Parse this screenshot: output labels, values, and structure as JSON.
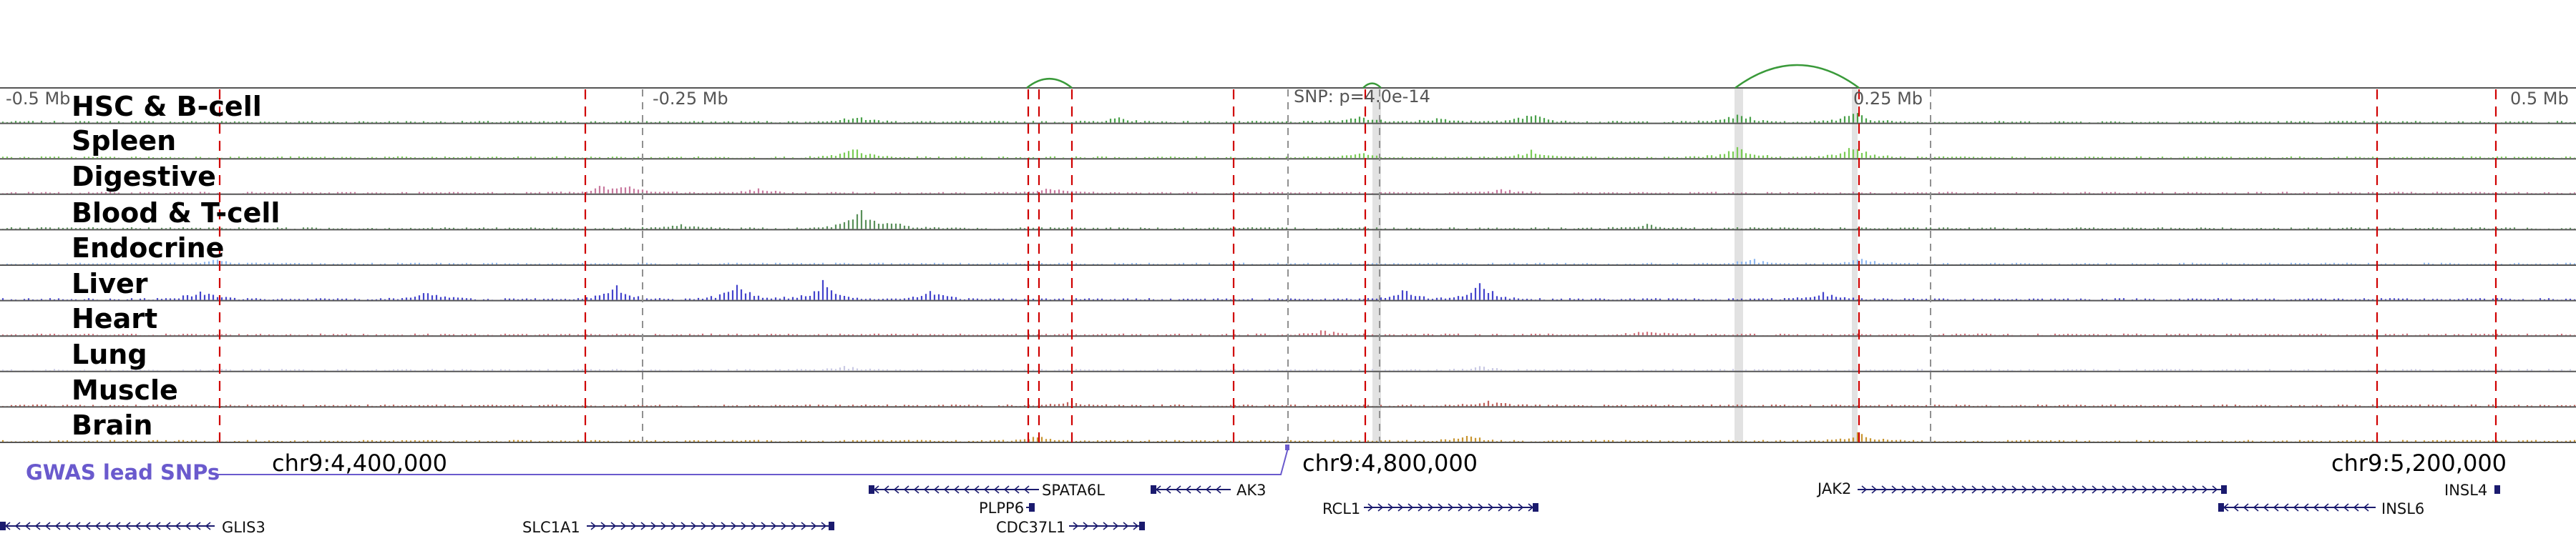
{
  "scale": {
    "left": "-0.5 Mb",
    "mid_left": "-0.25 Mb",
    "snp": "SNP: p=4.0e-14",
    "mid_right": "0.25 Mb",
    "right": "0.5 Mb"
  },
  "tracks": [
    {
      "name": "HSC & B-cell",
      "color": "#4aa04a"
    },
    {
      "name": "Spleen",
      "color": "#7acc55"
    },
    {
      "name": "Digestive",
      "color": "#c8789e"
    },
    {
      "name": "Blood & T-cell",
      "color": "#5a905a"
    },
    {
      "name": "Endocrine",
      "color": "#8fb8f0"
    },
    {
      "name": "Liver",
      "color": "#4444cc"
    },
    {
      "name": "Heart",
      "color": "#d0707a"
    },
    {
      "name": "Lung",
      "color": "#c8c8e4"
    },
    {
      "name": "Muscle",
      "color": "#c0605a"
    },
    {
      "name": "Brain",
      "color": "#c89530"
    }
  ],
  "gwas": {
    "label": "GWAS lead SNPs",
    "color": "#6a5acd"
  },
  "coordinates": [
    "chr9:4,400,000",
    "chr9:4,800,000",
    "chr9:5,200,000"
  ],
  "genes": [
    {
      "name": "GLIS3",
      "strand": "-"
    },
    {
      "name": "SLC1A1",
      "strand": "+"
    },
    {
      "name": "SPATA6L",
      "strand": "-"
    },
    {
      "name": "PLPP6",
      "strand": "+"
    },
    {
      "name": "CDC37L1",
      "strand": "+"
    },
    {
      "name": "AK3",
      "strand": "-"
    },
    {
      "name": "RCL1",
      "strand": "+"
    },
    {
      "name": "JAK2",
      "strand": "+"
    },
    {
      "name": "INSL6",
      "strand": "-"
    },
    {
      "name": "INSL4",
      "strand": "+"
    }
  ],
  "colors": {
    "red_dashed": "#d00000",
    "gray_dashed": "#909090",
    "arc": "#3a9a3a",
    "gene": "#1a1a6e",
    "highlight": "#e2e2e2"
  }
}
